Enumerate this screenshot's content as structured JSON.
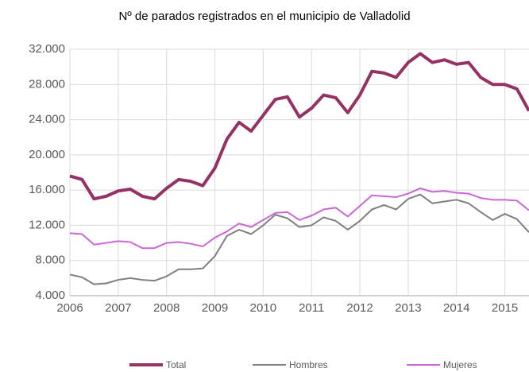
{
  "chart_data": {
    "type": "line",
    "title": "Nº de parados registrados en el municipio de Valladolid",
    "x": [
      2006,
      2006.25,
      2006.5,
      2006.75,
      2007,
      2007.25,
      2007.5,
      2007.75,
      2008,
      2008.25,
      2008.5,
      2008.75,
      2009,
      2009.25,
      2009.5,
      2009.75,
      2010,
      2010.25,
      2010.5,
      2010.75,
      2011,
      2011.25,
      2011.5,
      2011.75,
      2012,
      2012.25,
      2012.5,
      2012.75,
      2013,
      2013.25,
      2013.5,
      2013.75,
      2014,
      2014.25,
      2014.5,
      2014.75,
      2015,
      2015.25,
      2015.5
    ],
    "series": [
      {
        "name": "Total",
        "color": "#953163",
        "values": [
          17600,
          17200,
          15000,
          15300,
          15900,
          16100,
          15300,
          15000,
          16200,
          17200,
          17000,
          16500,
          18500,
          21800,
          23700,
          22700,
          24500,
          26300,
          26600,
          24300,
          25300,
          26800,
          26500,
          24800,
          26800,
          29500,
          29300,
          28800,
          30500,
          31500,
          30500,
          30800,
          30300,
          30500,
          28800,
          28000,
          28000,
          27500,
          25000
        ]
      },
      {
        "name": "Hombres",
        "color": "#7f7f7f",
        "values": [
          6400,
          6100,
          5300,
          5400,
          5800,
          6000,
          5800,
          5700,
          6200,
          7000,
          7000,
          7100,
          8500,
          10800,
          11500,
          11000,
          12000,
          13200,
          12800,
          11800,
          12000,
          12900,
          12500,
          11500,
          12500,
          13800,
          14300,
          13800,
          15000,
          15500,
          14500,
          14700,
          14900,
          14500,
          13500,
          12600,
          13300,
          12700,
          11200
        ]
      },
      {
        "name": "Mujeres",
        "color": "#cc66d6",
        "values": [
          11100,
          11000,
          9800,
          10000,
          10200,
          10100,
          9400,
          9400,
          10000,
          10100,
          9900,
          9600,
          10600,
          11300,
          12200,
          11800,
          12600,
          13400,
          13500,
          12600,
          13100,
          13800,
          14000,
          13000,
          14200,
          15400,
          15300,
          15200,
          15600,
          16200,
          15800,
          15900,
          15700,
          15600,
          15100,
          14900,
          14900,
          14800,
          13700
        ]
      }
    ],
    "xlim": [
      2006,
      2015.5
    ],
    "xticks": [
      2006,
      2007,
      2008,
      2009,
      2010,
      2011,
      2012,
      2013,
      2014,
      2015
    ],
    "ylim": [
      4000,
      32000
    ],
    "yticks": [
      {
        "value": 4000,
        "label": "4.000"
      },
      {
        "value": 8000,
        "label": "8.000"
      },
      {
        "value": 12000,
        "label": "12.000"
      },
      {
        "value": 16000,
        "label": "16.000"
      },
      {
        "value": 20000,
        "label": "20.000"
      },
      {
        "value": 24000,
        "label": "24.000"
      },
      {
        "value": 28000,
        "label": "28.000"
      },
      {
        "value": 32000,
        "label": "32.000"
      }
    ],
    "grid": true,
    "legend": "bottom"
  }
}
